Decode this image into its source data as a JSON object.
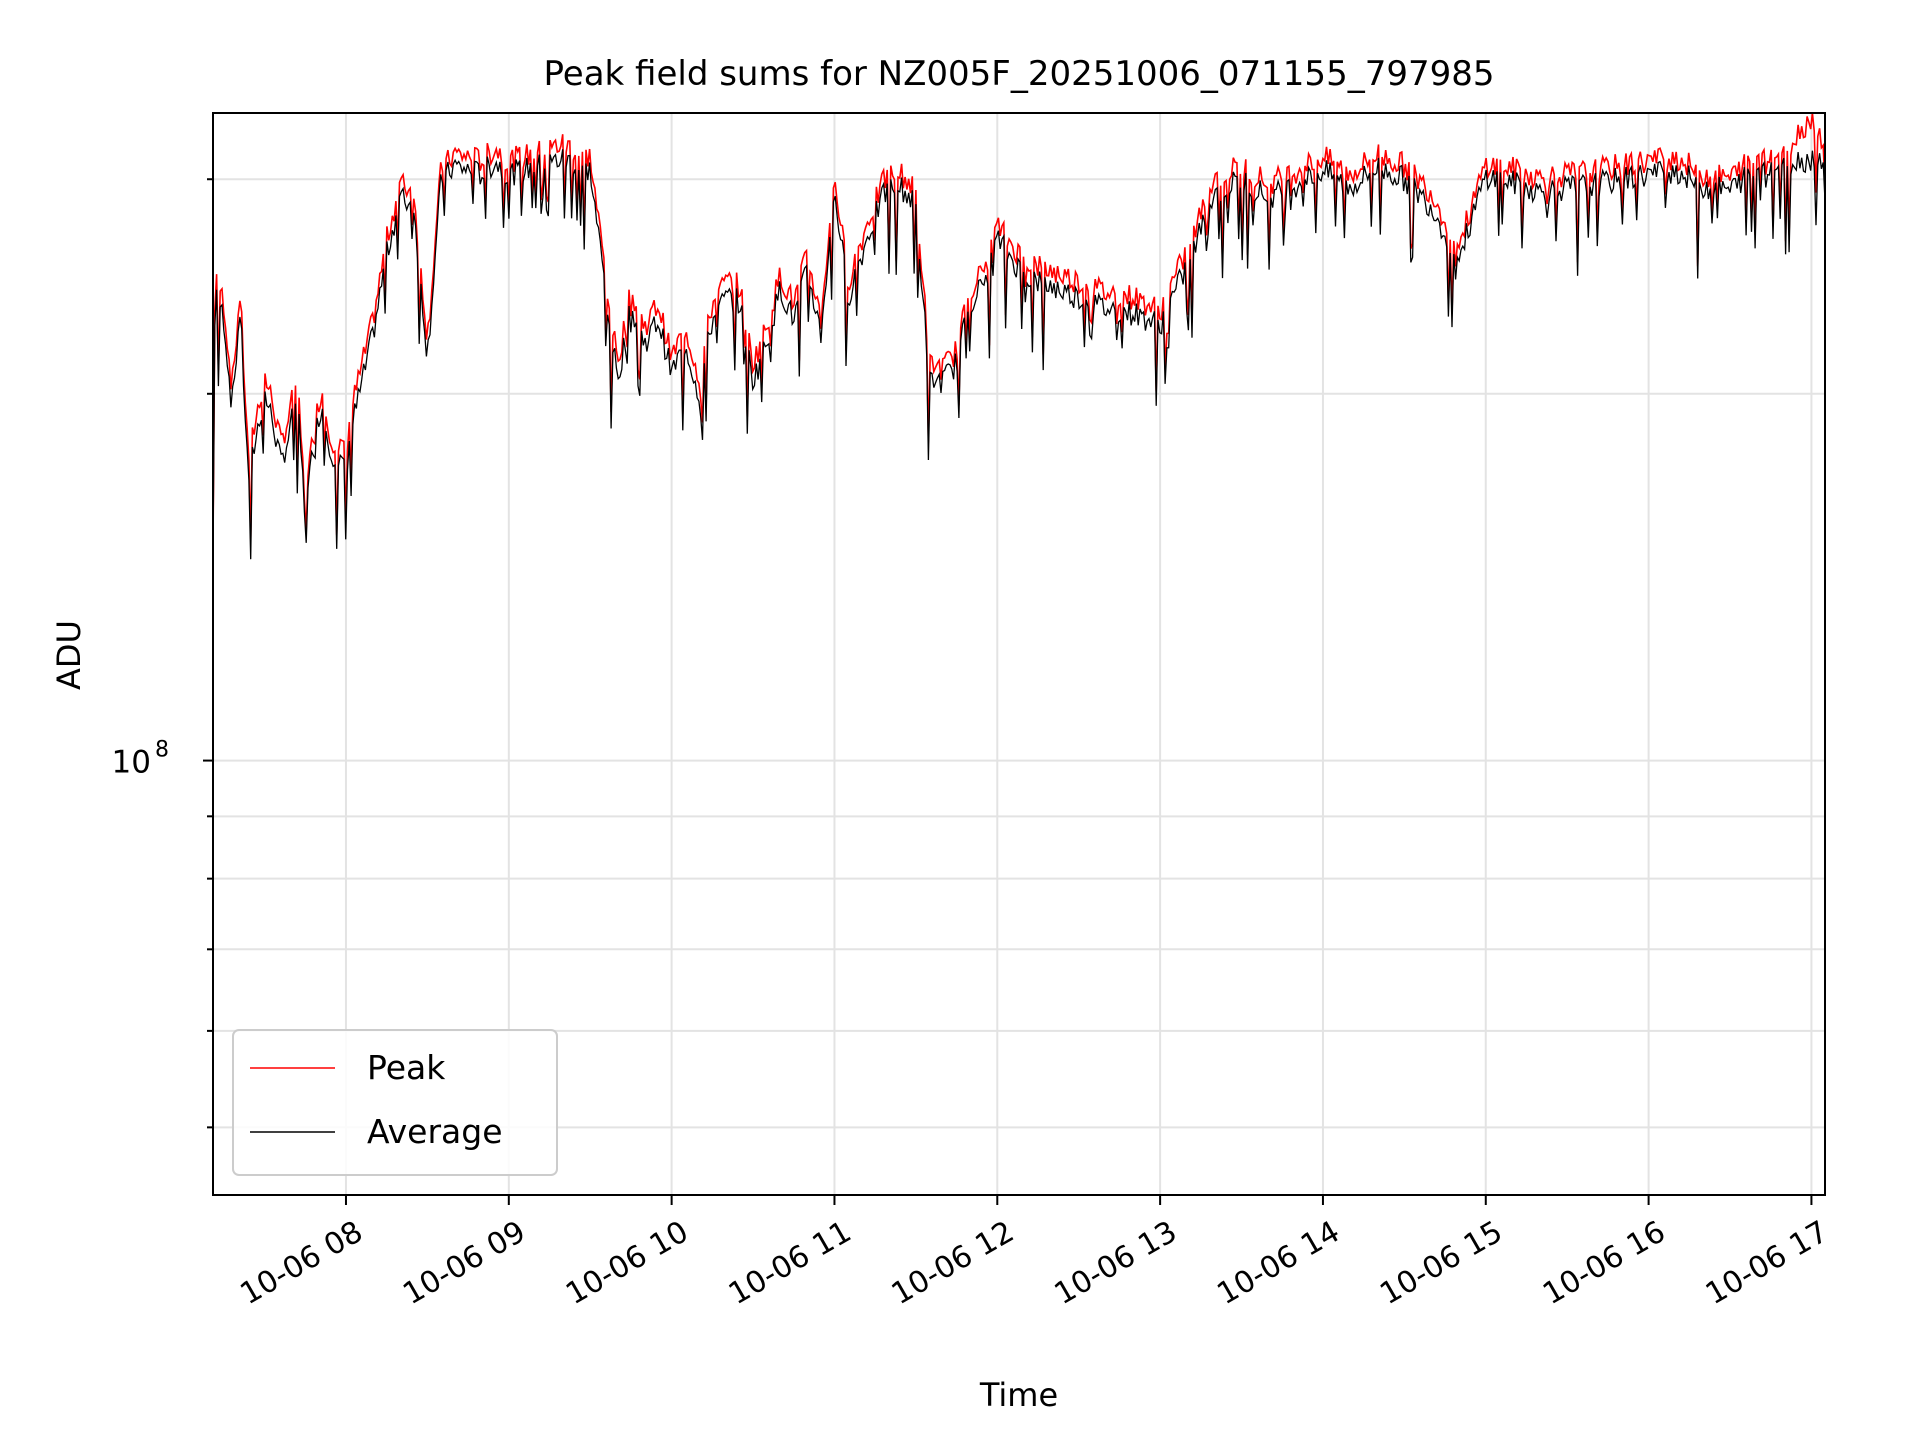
{
  "chart_data": {
    "type": "line",
    "title": "Peak field sums for NZ005F_20251006_071155_797985",
    "xlabel": "Time",
    "ylabel": "ADU",
    "y_scale": "log",
    "y_tick_labels": [
      {
        "base": "10",
        "exp": "8"
      }
    ],
    "x_tick_labels": [
      "10-06 08",
      "10-06 09",
      "10-06 10",
      "10-06 11",
      "10-06 12",
      "10-06 13",
      "10-06 14",
      "10-06 15",
      "10-06 16",
      "10-06 17"
    ],
    "x_range": [
      "2025-10-06 07:11",
      "2025-10-06 17:05"
    ],
    "ylim": [
      44000000,
      340000000
    ],
    "grid": true,
    "legend_position": "lower-left",
    "x": [
      "2025-10-06 07:12",
      "2025-10-06 07:15",
      "2025-10-06 07:18",
      "2025-10-06 07:21",
      "2025-10-06 07:24",
      "2025-10-06 07:27",
      "2025-10-06 07:30",
      "2025-10-06 07:33",
      "2025-10-06 07:36",
      "2025-10-06 07:39",
      "2025-10-06 07:42",
      "2025-10-06 07:45",
      "2025-10-06 07:48",
      "2025-10-06 07:51",
      "2025-10-06 07:54",
      "2025-10-06 07:57",
      "2025-10-06 08:00",
      "2025-10-06 08:05",
      "2025-10-06 08:10",
      "2025-10-06 08:15",
      "2025-10-06 08:20",
      "2025-10-06 08:25",
      "2025-10-06 08:30",
      "2025-10-06 08:35",
      "2025-10-06 08:40",
      "2025-10-06 08:45",
      "2025-10-06 08:50",
      "2025-10-06 08:55",
      "2025-10-06 09:00",
      "2025-10-06 09:10",
      "2025-10-06 09:20",
      "2025-10-06 09:30",
      "2025-10-06 09:35",
      "2025-10-06 09:40",
      "2025-10-06 09:45",
      "2025-10-06 09:50",
      "2025-10-06 09:55",
      "2025-10-06 10:00",
      "2025-10-06 10:05",
      "2025-10-06 10:10",
      "2025-10-06 10:15",
      "2025-10-06 10:20",
      "2025-10-06 10:25",
      "2025-10-06 10:30",
      "2025-10-06 10:35",
      "2025-10-06 10:40",
      "2025-10-06 10:45",
      "2025-10-06 10:50",
      "2025-10-06 10:55",
      "2025-10-06 11:00",
      "2025-10-06 11:05",
      "2025-10-06 11:10",
      "2025-10-06 11:15",
      "2025-10-06 11:20",
      "2025-10-06 11:25",
      "2025-10-06 11:30",
      "2025-10-06 11:35",
      "2025-10-06 11:40",
      "2025-10-06 11:45",
      "2025-10-06 11:50",
      "2025-10-06 11:55",
      "2025-10-06 12:00",
      "2025-10-06 12:10",
      "2025-10-06 12:20",
      "2025-10-06 12:30",
      "2025-10-06 12:40",
      "2025-10-06 12:50",
      "2025-10-06 13:00",
      "2025-10-06 13:10",
      "2025-10-06 13:20",
      "2025-10-06 13:30",
      "2025-10-06 13:40",
      "2025-10-06 13:50",
      "2025-10-06 14:00",
      "2025-10-06 14:10",
      "2025-10-06 14:20",
      "2025-10-06 14:30",
      "2025-10-06 14:40",
      "2025-10-06 14:50",
      "2025-10-06 15:00",
      "2025-10-06 15:10",
      "2025-10-06 15:20",
      "2025-10-06 15:30",
      "2025-10-06 15:40",
      "2025-10-06 15:50",
      "2025-10-06 16:00",
      "2025-10-06 16:10",
      "2025-10-06 16:20",
      "2025-10-06 16:30",
      "2025-10-06 16:40",
      "2025-10-06 16:50",
      "2025-10-06 17:00",
      "2025-10-06 17:05"
    ],
    "series": [
      {
        "name": "Peak",
        "color": "#ff0000",
        "values": [
          250000000,
          235000000,
          200000000,
          240000000,
          175000000,
          190000000,
          205000000,
          195000000,
          180000000,
          190000000,
          205000000,
          160000000,
          185000000,
          200000000,
          185000000,
          175000000,
          185000000,
          205000000,
          228000000,
          265000000,
          295000000,
          290000000,
          220000000,
          302000000,
          312000000,
          310000000,
          308000000,
          315000000,
          308000000,
          312000000,
          318000000,
          310000000,
          255000000,
          210000000,
          240000000,
          225000000,
          235000000,
          212000000,
          225000000,
          205000000,
          235000000,
          245000000,
          243000000,
          210000000,
          225000000,
          248000000,
          235000000,
          258000000,
          228000000,
          300000000,
          245000000,
          265000000,
          285000000,
          302000000,
          300000000,
          290000000,
          210000000,
          208000000,
          215000000,
          242000000,
          250000000,
          272000000,
          255000000,
          250000000,
          245000000,
          240000000,
          238000000,
          232000000,
          260000000,
          298000000,
          305000000,
          295000000,
          302000000,
          310000000,
          300000000,
          312000000,
          305000000,
          290000000,
          262000000,
          306000000,
          303000000,
          298000000,
          300000000,
          302000000,
          305000000,
          308000000,
          310000000,
          300000000,
          298000000,
          312000000,
          313000000,
          335000000,
          318000000
        ]
      },
      {
        "name": "Average",
        "color": "#000000",
        "values": [
          245000000,
          230000000,
          195000000,
          235000000,
          170000000,
          185000000,
          200000000,
          190000000,
          175000000,
          185000000,
          200000000,
          158000000,
          182000000,
          196000000,
          182000000,
          172000000,
          180000000,
          200000000,
          224000000,
          260000000,
          290000000,
          285000000,
          215000000,
          298000000,
          308000000,
          305000000,
          303000000,
          310000000,
          303000000,
          307000000,
          312000000,
          305000000,
          250000000,
          205000000,
          235000000,
          220000000,
          230000000,
          208000000,
          220000000,
          200000000,
          230000000,
          240000000,
          238000000,
          205000000,
          220000000,
          244000000,
          230000000,
          253000000,
          224000000,
          295000000,
          240000000,
          260000000,
          280000000,
          297000000,
          295000000,
          285000000,
          205000000,
          205000000,
          212000000,
          238000000,
          246000000,
          268000000,
          250000000,
          245000000,
          240000000,
          235000000,
          233000000,
          228000000,
          255000000,
          292000000,
          300000000,
          290000000,
          297000000,
          305000000,
          295000000,
          307000000,
          300000000,
          285000000,
          258000000,
          302000000,
          298000000,
          293000000,
          295000000,
          297000000,
          300000000,
          303000000,
          305000000,
          296000000,
          294000000,
          307000000,
          309000000,
          312000000,
          313000000
        ]
      }
    ]
  }
}
